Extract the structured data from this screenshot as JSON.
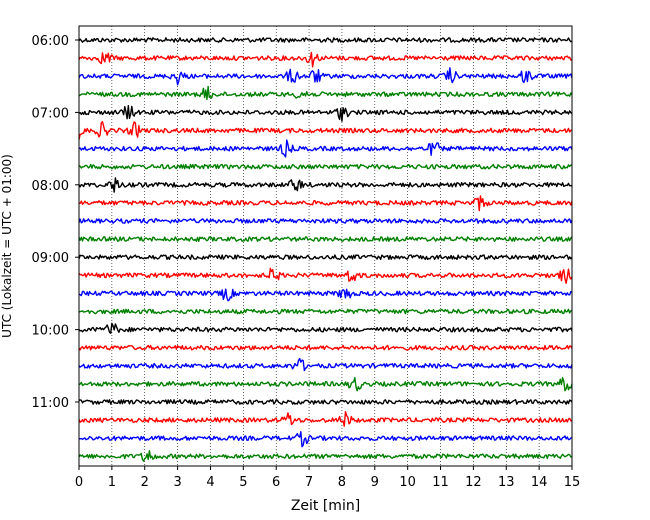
{
  "chart_data": {
    "type": "line",
    "title": "",
    "xlabel": "Zeit  [min]",
    "ylabel": "UTC (Lokalzeit = UTC + 01:00)",
    "xlim": [
      0,
      15
    ],
    "x_ticks": [
      "0",
      "1",
      "2",
      "3",
      "4",
      "5",
      "6",
      "7",
      "8",
      "9",
      "10",
      "11",
      "12",
      "13",
      "14",
      "15"
    ],
    "y_tick_labels": [
      "06:00",
      "07:00",
      "08:00",
      "09:00",
      "10:00",
      "11:00"
    ],
    "grid": "vertical dotted",
    "legend": "none",
    "trace_colors": [
      "#000000",
      "#ff0000",
      "#0000ff",
      "#008000"
    ],
    "traces_start": "06:00",
    "trace_interval_min": 15,
    "trace_count": 24,
    "series": [
      {
        "start": "06:00",
        "color": "#000000",
        "events_min": []
      },
      {
        "start": "06:15",
        "color": "#ff0000",
        "events_min": [
          0.8,
          7.1
        ]
      },
      {
        "start": "06:30",
        "color": "#0000ff",
        "events_min": [
          3.0,
          6.5,
          7.2,
          11.3,
          13.6
        ]
      },
      {
        "start": "06:45",
        "color": "#008000",
        "events_min": [
          3.9,
          6.8
        ]
      },
      {
        "start": "07:00",
        "color": "#000000",
        "events_min": [
          1.5,
          8.0
        ]
      },
      {
        "start": "07:15",
        "color": "#ff0000",
        "events_min": [
          0.0,
          0.7,
          1.7
        ]
      },
      {
        "start": "07:30",
        "color": "#0000ff",
        "events_min": [
          6.3,
          10.8
        ]
      },
      {
        "start": "07:45",
        "color": "#008000",
        "events_min": []
      },
      {
        "start": "08:00",
        "color": "#000000",
        "events_min": [
          1.1,
          6.6
        ]
      },
      {
        "start": "08:15",
        "color": "#ff0000",
        "events_min": [
          12.2
        ]
      },
      {
        "start": "08:30",
        "color": "#0000ff",
        "events_min": []
      },
      {
        "start": "08:45",
        "color": "#008000",
        "events_min": []
      },
      {
        "start": "09:00",
        "color": "#000000",
        "events_min": []
      },
      {
        "start": "09:15",
        "color": "#ff0000",
        "events_min": [
          5.9,
          8.3,
          14.8
        ]
      },
      {
        "start": "09:30",
        "color": "#0000ff",
        "events_min": [
          4.5,
          8.1
        ]
      },
      {
        "start": "09:45",
        "color": "#008000",
        "events_min": []
      },
      {
        "start": "10:00",
        "color": "#000000",
        "events_min": [
          1.0
        ]
      },
      {
        "start": "10:15",
        "color": "#ff0000",
        "events_min": []
      },
      {
        "start": "10:30",
        "color": "#0000ff",
        "events_min": [
          6.7
        ]
      },
      {
        "start": "10:45",
        "color": "#008000",
        "events_min": [
          8.4,
          14.8
        ]
      },
      {
        "start": "11:00",
        "color": "#000000",
        "events_min": []
      },
      {
        "start": "11:15",
        "color": "#ff0000",
        "events_min": [
          6.4,
          8.1
        ]
      },
      {
        "start": "11:30",
        "color": "#0000ff",
        "events_min": [
          6.8
        ]
      },
      {
        "start": "11:45",
        "color": "#008000",
        "events_min": [
          2.1
        ]
      }
    ]
  }
}
